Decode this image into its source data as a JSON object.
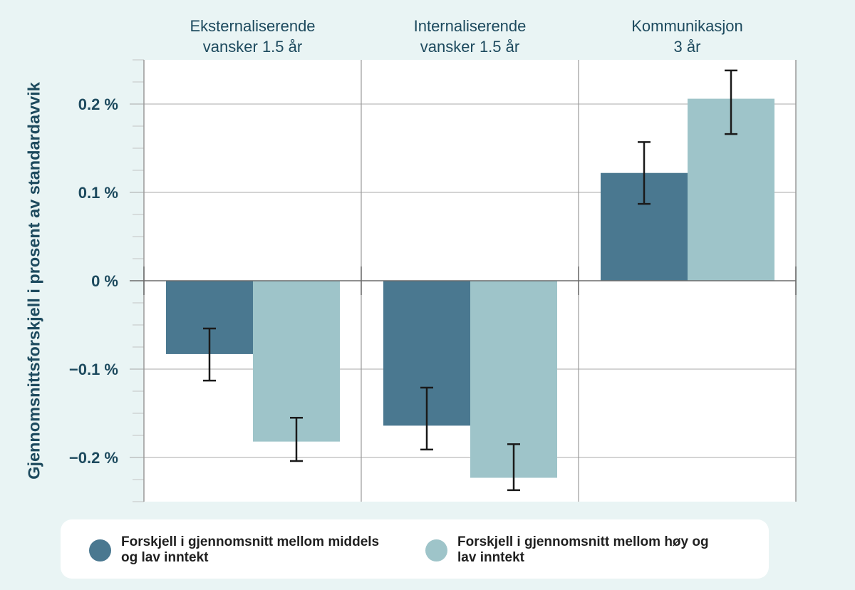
{
  "colors": {
    "background": "#e9f4f4",
    "plot_background": "#ffffff",
    "series_middle_low": "#4a7890",
    "series_high_low": "#9ec4c9",
    "error_bar": "#1a1a1a",
    "text": "#1d4a5e"
  },
  "chart_data": {
    "type": "bar",
    "title": "",
    "ylabel": "Gjennomsnittsforskjell i prosent av standardavvik",
    "xlabel": "",
    "ylim": [
      -0.25,
      0.25
    ],
    "yticks": [
      0.2,
      0.1,
      0,
      -0.1,
      -0.2
    ],
    "ytick_labels": [
      "0.2 %",
      "0.1 %",
      "0 %",
      "−0.1 %",
      "−0.2 %"
    ],
    "grid": true,
    "legend_position": "bottom",
    "facets": [
      {
        "title_lines": [
          "Eksternaliserende",
          "vansker 1.5 år"
        ]
      },
      {
        "title_lines": [
          "Internaliserende",
          "vansker 1.5 år"
        ]
      },
      {
        "title_lines": [
          "Kommunikasjon",
          "3 år"
        ]
      }
    ],
    "series": [
      {
        "name_lines": [
          "Forskjell i gjennomsnitt mellom middels",
          "og lav inntekt"
        ],
        "color": "#4a7890",
        "values": [
          -0.083,
          -0.164,
          0.122
        ],
        "error_low": [
          -0.113,
          -0.191,
          0.087
        ],
        "error_high": [
          -0.054,
          -0.121,
          0.157
        ]
      },
      {
        "name_lines": [
          "Forskjell i gjennomsnitt mellom høy og",
          "lav inntekt"
        ],
        "color": "#9ec4c9",
        "values": [
          -0.182,
          -0.223,
          0.206
        ],
        "error_low": [
          -0.204,
          -0.237,
          0.166
        ],
        "error_high": [
          -0.155,
          -0.185,
          0.238
        ]
      }
    ]
  }
}
